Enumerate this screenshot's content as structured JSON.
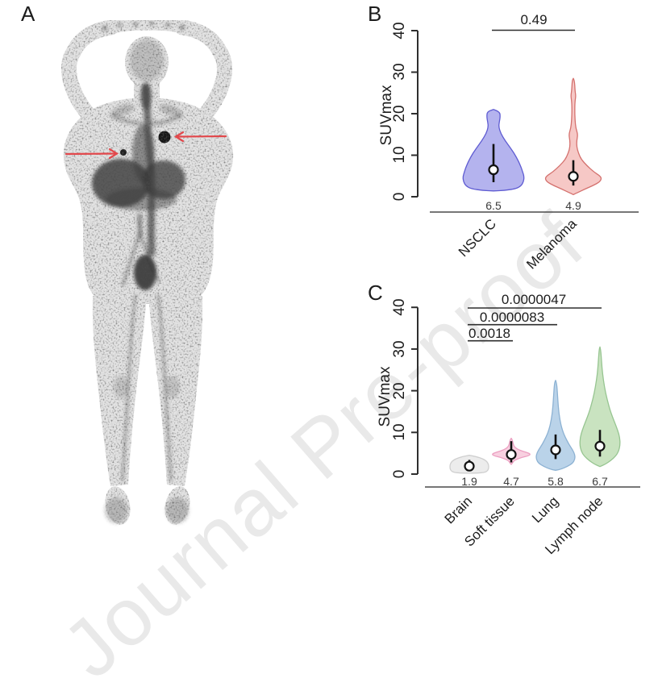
{
  "watermark": {
    "text": "Journal Pre-proof",
    "color": "#e9e9e9"
  },
  "panels": {
    "A": {
      "label": "A",
      "arrow_color": "#e2484c"
    },
    "B": {
      "label": "B"
    },
    "C": {
      "label": "C"
    }
  },
  "chart_data": [
    {
      "type": "violin",
      "panel": "B",
      "title": "",
      "xlabel": "",
      "ylabel": "SUVmax",
      "ylim": [
        0,
        40
      ],
      "yticks": [
        "0",
        "10",
        "20",
        "30",
        "40"
      ],
      "grid": false,
      "categories": [
        "NSCLC",
        "Melanoma"
      ],
      "series": [
        {
          "name": "NSCLC",
          "median": 6.5,
          "median_label": "6.5",
          "iqr": [
            3.5,
            12.7
          ],
          "range": [
            1.4,
            21.0
          ],
          "fill": "#b4b3ee",
          "stroke": "#5f5cd2",
          "profile": [
            [
              21,
              0
            ],
            [
              20.5,
              0.2
            ],
            [
              19.3,
              0.22
            ],
            [
              18,
              0.19
            ],
            [
              16.8,
              0.17
            ],
            [
              15.2,
              0.24
            ],
            [
              13.5,
              0.38
            ],
            [
              11.5,
              0.58
            ],
            [
              9.5,
              0.75
            ],
            [
              7.5,
              0.88
            ],
            [
              6,
              0.95
            ],
            [
              4.8,
              1
            ],
            [
              3.6,
              0.98
            ],
            [
              2.6,
              0.9
            ],
            [
              1.9,
              0.72
            ],
            [
              1.5,
              0.35
            ],
            [
              1.4,
              0
            ]
          ]
        },
        {
          "name": "Melanoma",
          "median": 4.9,
          "median_label": "4.9",
          "iqr": [
            2.7,
            8.8
          ],
          "range": [
            0.5,
            28.5
          ],
          "fill": "#f6c8c6",
          "stroke": "#d4716e",
          "profile": [
            [
              28.5,
              0
            ],
            [
              28,
              0.04
            ],
            [
              25.5,
              0.06
            ],
            [
              24.3,
              0.09
            ],
            [
              23,
              0.06
            ],
            [
              21,
              0.05
            ],
            [
              18.5,
              0.06
            ],
            [
              16.5,
              0.09
            ],
            [
              15,
              0.16
            ],
            [
              13.5,
              0.12
            ],
            [
              12,
              0.12
            ],
            [
              10.5,
              0.18
            ],
            [
              9,
              0.28
            ],
            [
              7.5,
              0.48
            ],
            [
              6,
              0.72
            ],
            [
              5,
              0.95
            ],
            [
              4.3,
              1
            ],
            [
              3.5,
              0.92
            ],
            [
              2.7,
              0.7
            ],
            [
              1.8,
              0.4
            ],
            [
              1,
              0.15
            ],
            [
              0.5,
              0
            ]
          ]
        }
      ],
      "comparisons": [
        {
          "between": [
            "NSCLC",
            "Melanoma"
          ],
          "p_label": "0.49"
        }
      ]
    },
    {
      "type": "violin",
      "panel": "C",
      "title": "",
      "xlabel": "",
      "ylabel": "SUVmax",
      "ylim": [
        0,
        40
      ],
      "yticks": [
        "0",
        "10",
        "20",
        "30",
        "40"
      ],
      "grid": false,
      "categories": [
        "Brain",
        "Soft tissue",
        "Lung",
        "Lymph node"
      ],
      "series": [
        {
          "name": "Brain",
          "median": 1.9,
          "median_label": "1.9",
          "iqr": [
            1.1,
            3.4
          ],
          "range": [
            0.2,
            4.5
          ],
          "fill": "#ececec",
          "stroke": "#cfcfcf",
          "profile": [
            [
              4.5,
              0
            ],
            [
              4.2,
              0.35
            ],
            [
              3.7,
              0.7
            ],
            [
              3,
              0.92
            ],
            [
              2.2,
              1
            ],
            [
              1.4,
              1
            ],
            [
              0.8,
              0.95
            ],
            [
              0.4,
              0.8
            ],
            [
              0.25,
              0.45
            ],
            [
              0.2,
              0
            ]
          ]
        },
        {
          "name": "Soft tissue",
          "median": 4.7,
          "median_label": "4.7",
          "iqr": [
            2.8,
            7.9
          ],
          "range": [
            2.3,
            8.6
          ],
          "fill": "#f8d0e0",
          "stroke": "#eb9fc1",
          "profile": [
            [
              8.6,
              0
            ],
            [
              8.2,
              0.06
            ],
            [
              7.4,
              0.09
            ],
            [
              6.5,
              0.16
            ],
            [
              5.8,
              0.38
            ],
            [
              5.2,
              0.8
            ],
            [
              4.8,
              1
            ],
            [
              4.4,
              0.9
            ],
            [
              4,
              0.55
            ],
            [
              3.5,
              0.25
            ],
            [
              3.1,
              0.12
            ],
            [
              2.7,
              0.07
            ],
            [
              2.3,
              0
            ]
          ]
        },
        {
          "name": "Lung",
          "median": 5.8,
          "median_label": "5.8",
          "iqr": [
            3.6,
            9.5
          ],
          "range": [
            0.9,
            22.5
          ],
          "fill": "#bad3e9",
          "stroke": "#8db2d3",
          "profile": [
            [
              22.5,
              0
            ],
            [
              21.8,
              0.06
            ],
            [
              19,
              0.1
            ],
            [
              16,
              0.14
            ],
            [
              13,
              0.22
            ],
            [
              10.5,
              0.35
            ],
            [
              8.8,
              0.5
            ],
            [
              7.2,
              0.68
            ],
            [
              5.8,
              0.88
            ],
            [
              4.6,
              1
            ],
            [
              3.6,
              1
            ],
            [
              2.6,
              0.88
            ],
            [
              1.8,
              0.6
            ],
            [
              1.2,
              0.3
            ],
            [
              0.9,
              0
            ]
          ]
        },
        {
          "name": "Lymph node",
          "median": 6.7,
          "median_label": "6.7",
          "iqr": [
            4.2,
            10.6
          ],
          "range": [
            1.8,
            30.5
          ],
          "fill": "#c9e3c0",
          "stroke": "#97c591",
          "profile": [
            [
              30.5,
              0
            ],
            [
              29.8,
              0.04
            ],
            [
              27,
              0.08
            ],
            [
              24,
              0.13
            ],
            [
              21,
              0.22
            ],
            [
              18,
              0.35
            ],
            [
              15,
              0.52
            ],
            [
              12.5,
              0.72
            ],
            [
              10.5,
              0.88
            ],
            [
              8.8,
              0.98
            ],
            [
              7,
              1
            ],
            [
              5.5,
              0.93
            ],
            [
              4.3,
              0.78
            ],
            [
              3.2,
              0.52
            ],
            [
              2.4,
              0.28
            ],
            [
              1.8,
              0
            ]
          ]
        }
      ],
      "comparisons": [
        {
          "between": [
            "Brain",
            "Lymph node"
          ],
          "p_label": "0.0000047"
        },
        {
          "between": [
            "Brain",
            "Lung"
          ],
          "p_label": "0.0000083"
        },
        {
          "between": [
            "Brain",
            "Soft tissue"
          ],
          "p_label": "0.0018"
        }
      ]
    }
  ]
}
